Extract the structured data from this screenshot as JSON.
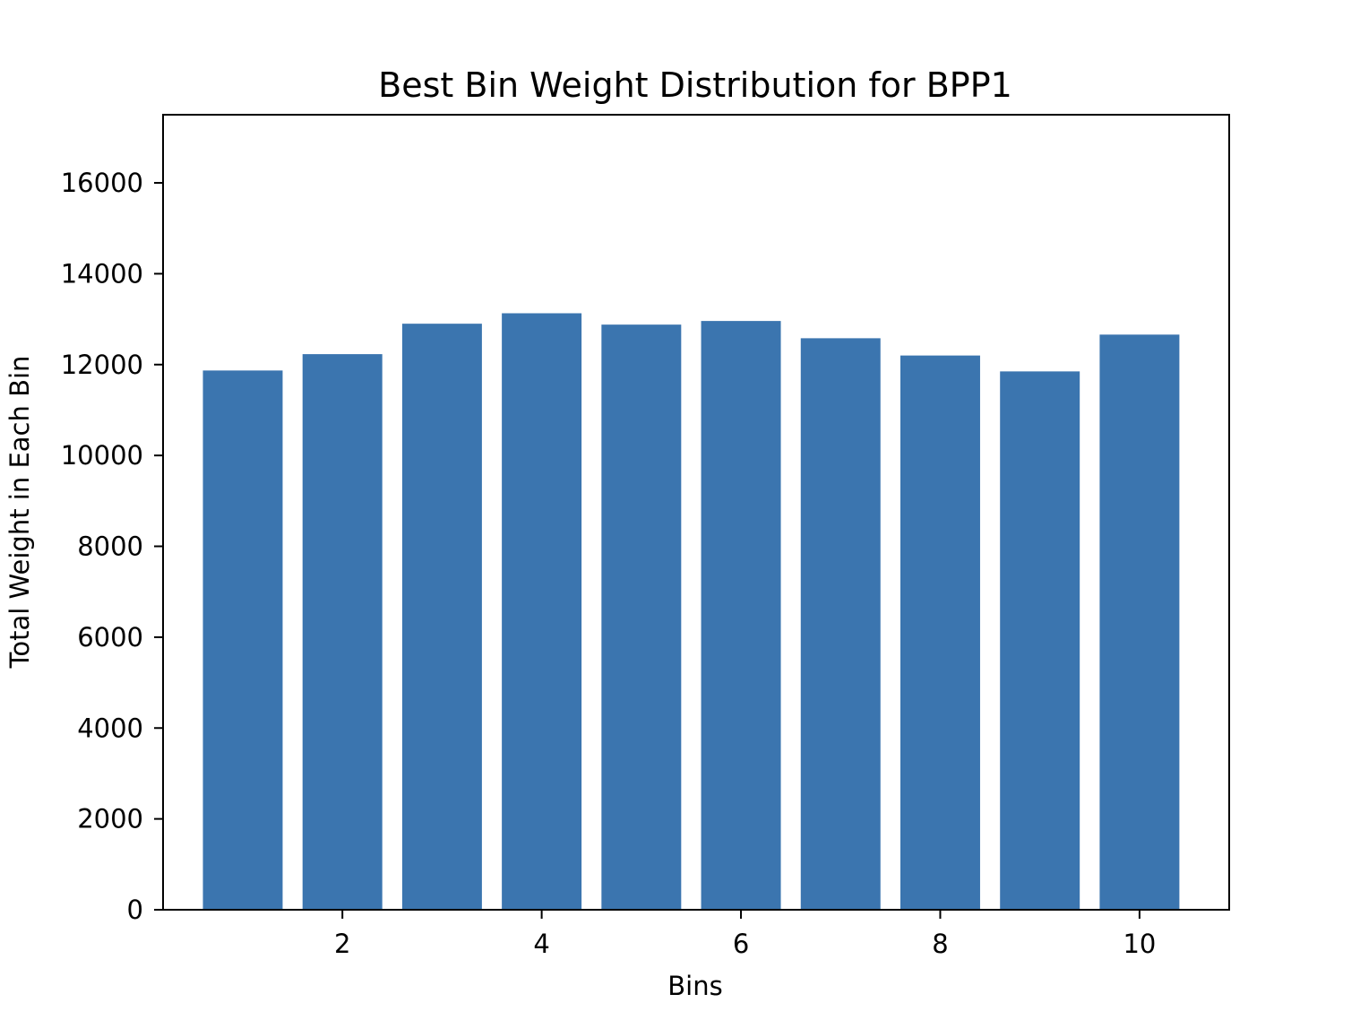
{
  "chart_data": {
    "type": "bar",
    "title": "Best Bin Weight Distribution for BPP1",
    "xlabel": "Bins",
    "ylabel": "Total Weight in Each Bin",
    "x": [
      1,
      2,
      3,
      4,
      5,
      6,
      7,
      8,
      9,
      10
    ],
    "values": [
      11870,
      12230,
      12900,
      13130,
      12880,
      12960,
      12580,
      12200,
      11850,
      12660
    ],
    "xlim": [
      0.2,
      10.9
    ],
    "ylim": [
      0,
      17500
    ],
    "xticks": [
      2,
      4,
      6,
      8,
      10
    ],
    "yticks": [
      0,
      2000,
      4000,
      6000,
      8000,
      10000,
      12000,
      14000,
      16000
    ],
    "bar_color": "#3b75af",
    "grid": false,
    "legend": "none"
  }
}
